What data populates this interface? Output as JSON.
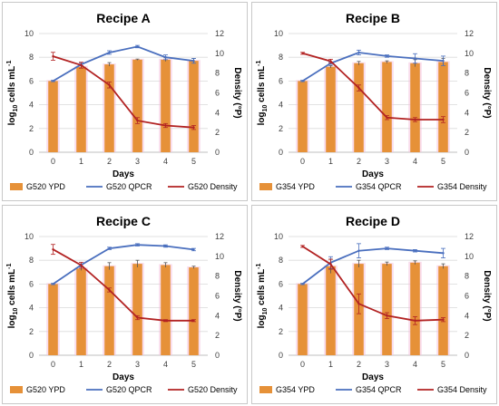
{
  "colors": {
    "bar": "#e69138",
    "bar_glow": "#f4c0dc",
    "qpcr": "#4a6fbe",
    "density": "#b22222",
    "error": "#555555",
    "grid": "#d9d9d9",
    "axis": "#bfbfbf"
  },
  "y_left_label_base": "log",
  "y_left_label_sub": "10",
  "y_left_label_tail": " cells mL",
  "y_left_label_sup": "-1",
  "y_right_label": "Density (°P)",
  "chart_data": [
    {
      "type": "bar",
      "title": "Recipe A",
      "xlabel": "Days",
      "categories": [
        "0",
        "1",
        "2",
        "3",
        "4",
        "5"
      ],
      "y_left_ticks": [
        "0",
        "2",
        "4",
        "6",
        "8",
        "10"
      ],
      "y_right_ticks": [
        "0",
        "2",
        "4",
        "6",
        "8",
        "10",
        "12"
      ],
      "ylim_left": [
        0,
        10
      ],
      "ylim_right": [
        0,
        12
      ],
      "series": [
        {
          "name": "G520 YPD",
          "kind": "bar",
          "axis": "left",
          "values": [
            6.0,
            7.2,
            7.4,
            7.8,
            7.8,
            7.7
          ],
          "errors": [
            0.05,
            0.1,
            0.15,
            0.05,
            0.15,
            0.2
          ]
        },
        {
          "name": "G520 QPCR",
          "kind": "line",
          "axis": "left",
          "values": [
            6.0,
            7.4,
            8.4,
            8.9,
            8.0,
            7.7
          ],
          "errors": [
            0.05,
            0.1,
            0.15,
            0.1,
            0.2,
            0.2
          ]
        },
        {
          "name": "G520 Density",
          "kind": "line",
          "axis": "right",
          "values": [
            9.7,
            8.8,
            6.8,
            3.2,
            2.7,
            2.5
          ],
          "errors": [
            0.4,
            0.3,
            0.3,
            0.3,
            0.2,
            0.2
          ]
        }
      ],
      "legend_position": "bottom"
    },
    {
      "type": "bar",
      "title": "Recipe B",
      "xlabel": "Days",
      "categories": [
        "0",
        "1",
        "2",
        "3",
        "4",
        "5"
      ],
      "y_left_ticks": [
        "0",
        "2",
        "4",
        "6",
        "8",
        "10"
      ],
      "y_right_ticks": [
        "0",
        "2",
        "4",
        "6",
        "8",
        "10",
        "12"
      ],
      "ylim_left": [
        0,
        10
      ],
      "ylim_right": [
        0,
        12
      ],
      "series": [
        {
          "name": "G354 YPD",
          "kind": "bar",
          "axis": "left",
          "values": [
            6.0,
            7.2,
            7.5,
            7.6,
            7.5,
            7.6
          ],
          "errors": [
            0.05,
            0.1,
            0.15,
            0.1,
            0.3,
            0.3
          ]
        },
        {
          "name": "G354 QPCR",
          "kind": "line",
          "axis": "left",
          "values": [
            6.0,
            7.5,
            8.4,
            8.1,
            7.9,
            7.7
          ],
          "errors": [
            0.05,
            0.1,
            0.2,
            0.1,
            0.4,
            0.4
          ]
        },
        {
          "name": "G354 Density",
          "kind": "line",
          "axis": "right",
          "values": [
            10.0,
            9.2,
            6.5,
            3.5,
            3.3,
            3.3
          ],
          "errors": [
            0.1,
            0.2,
            0.3,
            0.2,
            0.2,
            0.3
          ]
        }
      ],
      "legend_position": "bottom"
    },
    {
      "type": "bar",
      "title": "Recipe C",
      "xlabel": "Days",
      "categories": [
        "0",
        "1",
        "2",
        "3",
        "4",
        "5"
      ],
      "y_left_ticks": [
        "0",
        "2",
        "4",
        "6",
        "8",
        "10"
      ],
      "y_right_ticks": [
        "0",
        "2",
        "4",
        "6",
        "8",
        "10",
        "12"
      ],
      "ylim_left": [
        0,
        10
      ],
      "ylim_right": [
        0,
        12
      ],
      "series": [
        {
          "name": "G520 YPD",
          "kind": "bar",
          "axis": "left",
          "values": [
            6.0,
            7.3,
            7.5,
            7.7,
            7.6,
            7.4
          ],
          "errors": [
            0.05,
            0.15,
            0.3,
            0.3,
            0.2,
            0.1
          ]
        },
        {
          "name": "G520 QPCR",
          "kind": "line",
          "axis": "left",
          "values": [
            6.0,
            7.6,
            9.0,
            9.3,
            9.2,
            8.9
          ],
          "errors": [
            0.05,
            0.1,
            0.1,
            0.1,
            0.1,
            0.1
          ]
        },
        {
          "name": "G520 Density",
          "kind": "line",
          "axis": "right",
          "values": [
            10.7,
            9.1,
            6.6,
            3.8,
            3.5,
            3.5
          ],
          "errors": [
            0.5,
            0.3,
            0.2,
            0.2,
            0.1,
            0.1
          ]
        }
      ],
      "legend_position": "bottom"
    },
    {
      "type": "bar",
      "title": "Recipe D",
      "xlabel": "Days",
      "categories": [
        "0",
        "1",
        "2",
        "3",
        "4",
        "5"
      ],
      "y_left_ticks": [
        "0",
        "2",
        "4",
        "6",
        "8",
        "10"
      ],
      "y_right_ticks": [
        "0",
        "2",
        "4",
        "6",
        "8",
        "10",
        "12"
      ],
      "ylim_left": [
        0,
        10
      ],
      "ylim_right": [
        0,
        12
      ],
      "series": [
        {
          "name": "G354 YPD",
          "kind": "bar",
          "axis": "left",
          "values": [
            6.0,
            7.5,
            7.7,
            7.7,
            7.8,
            7.5
          ],
          "errors": [
            0.05,
            0.6,
            0.3,
            0.15,
            0.15,
            0.2
          ]
        },
        {
          "name": "G354 QPCR",
          "kind": "line",
          "axis": "left",
          "values": [
            6.0,
            7.8,
            8.8,
            9.0,
            8.8,
            8.6
          ],
          "errors": [
            0.05,
            0.5,
            0.6,
            0.1,
            0.1,
            0.4
          ]
        },
        {
          "name": "G354 Density",
          "kind": "line",
          "axis": "right",
          "values": [
            11.0,
            9.2,
            5.2,
            4.0,
            3.5,
            3.6
          ],
          "errors": [
            0.1,
            0.5,
            1.0,
            0.3,
            0.4,
            0.2
          ]
        }
      ],
      "legend_position": "bottom"
    }
  ]
}
